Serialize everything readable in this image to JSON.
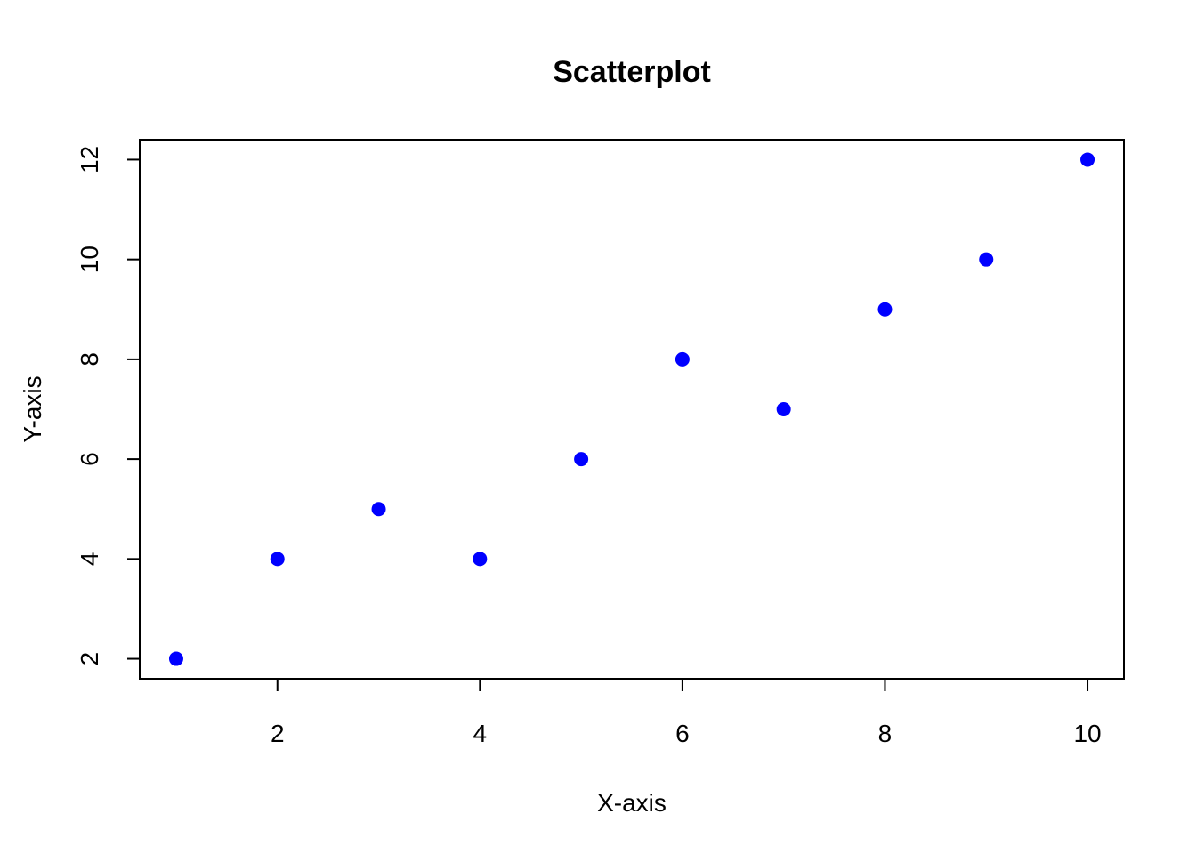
{
  "chart_data": {
    "type": "scatter",
    "title": "Scatterplot",
    "xlabel": "X-axis",
    "ylabel": "Y-axis",
    "x": [
      1,
      2,
      3,
      4,
      5,
      6,
      7,
      8,
      9,
      10
    ],
    "y": [
      2,
      4,
      5,
      4,
      6,
      8,
      7,
      9,
      10,
      12
    ],
    "xticks": [
      2,
      4,
      6,
      8,
      10
    ],
    "yticks": [
      2,
      4,
      6,
      8,
      10,
      12
    ],
    "xlim": [
      0.64,
      10.36
    ],
    "ylim": [
      1.6,
      12.4
    ],
    "grid": false,
    "point_color": "#0000ff"
  }
}
